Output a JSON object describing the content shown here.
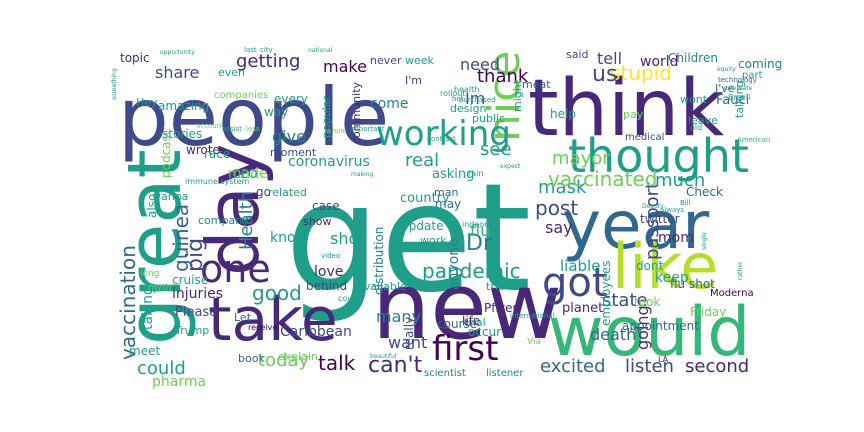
{
  "palette": {
    "dark_purple": "#440154",
    "indigo": "#482878",
    "blue_purple": "#3e4a89",
    "steel_blue": "#31688e",
    "teal_blue": "#26828e",
    "teal": "#1f9e89",
    "green": "#35b779",
    "light_green": "#6ece58",
    "lime": "#b5de2b",
    "yellow": "#fde725"
  },
  "words": [
    "get",
    "people",
    "think",
    "new",
    "year",
    "would",
    "day",
    "great",
    "take",
    "like",
    "thought",
    "nice",
    "working",
    "one",
    "first",
    "got",
    "pig",
    "guinea",
    "vaccination",
    "talk",
    "can't",
    "excited",
    "listen",
    "second",
    "could",
    "today",
    "pharma",
    "good",
    "state",
    "death",
    "going",
    "passport",
    "mom",
    "keep",
    "flu shot",
    "Caribbean",
    "want",
    "many",
    "shot",
    "pandemic",
    "Dr",
    "flu",
    "say",
    "post",
    "mask",
    "vaccinated",
    "much",
    "see",
    "mayor",
    "Health",
    "coronavirus",
    "real",
    "give",
    "made",
    "know",
    "stupid",
    "us",
    "tell",
    "world",
    "thank",
    "need",
    "make",
    "share",
    "getting",
    "Im",
    "come",
    "coming",
    "Children",
    "topic",
    "I'm",
    "I've",
    "Fauci",
    "help",
    "might",
    "meat",
    "pay",
    "wont",
    "leave",
    "medical",
    "talking",
    "part",
    "amazing",
    "stories",
    "wrote",
    "podcast",
    "race",
    "CEO",
    "moment",
    "related",
    "community",
    "popular",
    "every",
    "way",
    "Hey",
    "companies",
    "even",
    "never",
    "week",
    "said",
    "design",
    "public",
    "asking",
    "man",
    "may",
    "country",
    "Update",
    "work",
    "anyone",
    "distribution",
    "case",
    "show",
    "love",
    "behind",
    "available",
    "trial",
    "occur",
    "Pfizer",
    "planet",
    "liable",
    "employees",
    "took",
    "twitter",
    "Check",
    "appointment",
    "Friday",
    "Moderna",
    "dont",
    "injuries",
    "cruise",
    "Please",
    "Trump",
    "taking",
    "also",
    "wanna",
    "company",
    "explain",
    "book",
    "meet",
    "course",
    "life",
    "really",
    "go",
    "Let",
    "trip",
    "scientist",
    "listener",
    "immune system",
    "long",
    "myth",
    "receive",
    "beautiful",
    "rollout",
    "health",
    "rain",
    "indoor",
    "international",
    "LA",
    "Via",
    "Brazil",
    "technology",
    "celebrate",
    "equity",
    "American",
    "account",
    "contrast",
    "Deputy",
    "Bill",
    "always",
    "old",
    "important",
    "making",
    "video",
    "less",
    "assist",
    "whole",
    "hot",
    "purchased",
    "city",
    "last",
    "national",
    "opportunity",
    "something",
    "could",
    "rather",
    "single",
    "expect"
  ]
}
